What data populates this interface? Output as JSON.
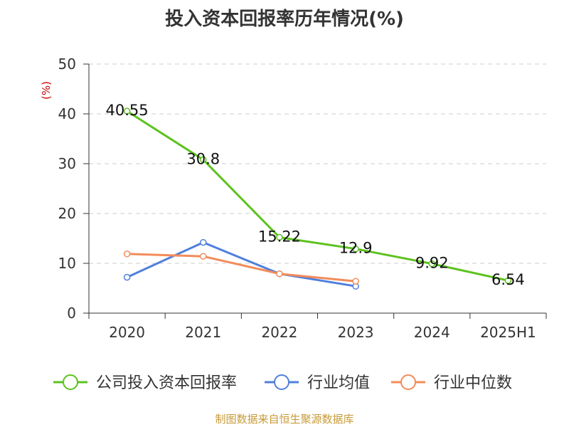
{
  "chart_data": {
    "type": "line",
    "title": "投入资本回报率历年情况(%)",
    "ylabel": "(%)",
    "ylim": [
      0,
      50
    ],
    "yticks": [
      0,
      10,
      20,
      30,
      40,
      50
    ],
    "categories": [
      "2020",
      "2021",
      "2022",
      "2023",
      "2024",
      "2025H1"
    ],
    "grid": true,
    "legend_position": "bottom",
    "series": [
      {
        "name": "公司投入资本回报率",
        "color": "#5dc21e",
        "values": [
          40.55,
          30.8,
          15.22,
          12.9,
          9.92,
          6.54
        ],
        "labels": [
          "40.55",
          "30.8",
          "15.22",
          "12.9",
          "9.92",
          "6.54"
        ]
      },
      {
        "name": "行业均值",
        "color": "#4f7fdc",
        "values": [
          7.2,
          14.2,
          7.9,
          5.4,
          null,
          null
        ]
      },
      {
        "name": "行业中位数",
        "color": "#f28c5a",
        "values": [
          11.9,
          11.4,
          7.9,
          6.4,
          null,
          null
        ]
      }
    ]
  },
  "footer": "制图数据来自恒生聚源数据库"
}
